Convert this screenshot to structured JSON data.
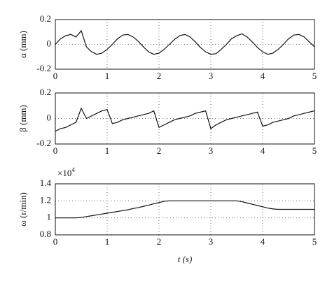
{
  "chart_data": [
    {
      "type": "line",
      "ylabel": "α (mm)",
      "x": [
        0,
        0.1,
        0.2,
        0.3,
        0.4,
        0.5,
        0.6,
        0.7,
        0.8,
        0.9,
        1,
        1.1,
        1.2,
        1.3,
        1.4,
        1.5,
        1.6,
        1.7,
        1.8,
        1.9,
        2,
        2.1,
        2.2,
        2.3,
        2.4,
        2.5,
        2.6,
        2.7,
        2.8,
        2.9,
        3,
        3.1,
        3.2,
        3.3,
        3.4,
        3.5,
        3.6,
        3.7,
        3.8,
        3.9,
        4,
        4.1,
        4.2,
        4.3,
        4.4,
        4.5,
        4.6,
        4.7,
        4.8,
        4.9,
        5
      ],
      "series": [
        {
          "color": "#111111",
          "values": [
            0,
            0.045,
            0.07,
            0.08,
            0.06,
            0.11,
            -0.02,
            -0.06,
            -0.08,
            -0.07,
            -0.04,
            0.0,
            0.045,
            0.075,
            0.08,
            0.06,
            0.025,
            -0.02,
            -0.06,
            -0.08,
            -0.07,
            -0.04,
            0.0,
            0.04,
            0.07,
            0.08,
            0.06,
            0.02,
            -0.025,
            -0.06,
            -0.08,
            -0.075,
            -0.04,
            0.0,
            0.045,
            0.07,
            0.085,
            0.06,
            0.02,
            -0.025,
            -0.06,
            -0.08,
            -0.07,
            -0.04,
            0.0,
            0.045,
            0.075,
            0.08,
            0.06,
            0.02,
            -0.02
          ]
        }
      ],
      "xlim": [
        0,
        5
      ],
      "xticks": [
        0,
        1,
        2,
        3,
        4,
        5
      ],
      "ylim": [
        -0.2,
        0.2
      ],
      "yticks": [
        -0.2,
        0,
        0.2
      ],
      "grid": true
    },
    {
      "type": "line",
      "ylabel": "β (mm)",
      "x": [
        0,
        0.1,
        0.2,
        0.3,
        0.4,
        0.5,
        0.6,
        0.7,
        0.8,
        0.9,
        1,
        1.1,
        1.2,
        1.3,
        1.4,
        1.5,
        1.6,
        1.7,
        1.8,
        1.9,
        2,
        2.1,
        2.2,
        2.3,
        2.4,
        2.5,
        2.6,
        2.7,
        2.8,
        2.9,
        3,
        3.1,
        3.2,
        3.3,
        3.4,
        3.5,
        3.6,
        3.7,
        3.8,
        3.9,
        4,
        4.1,
        4.2,
        4.3,
        4.4,
        4.5,
        4.6,
        4.7,
        4.8,
        4.9,
        5
      ],
      "series": [
        {
          "color": "#111111",
          "values": [
            -0.1,
            -0.08,
            -0.07,
            -0.05,
            -0.03,
            0.08,
            0.0,
            0.02,
            0.04,
            0.06,
            0.07,
            -0.04,
            -0.03,
            -0.01,
            0.0,
            0.01,
            0.02,
            0.03,
            0.04,
            0.06,
            -0.07,
            -0.05,
            -0.03,
            -0.01,
            0.0,
            0.01,
            0.02,
            0.04,
            0.05,
            0.06,
            -0.08,
            -0.05,
            -0.03,
            -0.01,
            0.0,
            0.01,
            0.02,
            0.03,
            0.04,
            0.05,
            -0.06,
            -0.05,
            -0.03,
            -0.02,
            -0.01,
            0.0,
            0.02,
            0.03,
            0.04,
            0.05,
            0.06
          ]
        }
      ],
      "xlim": [
        0,
        5
      ],
      "xticks": [
        0,
        1,
        2,
        3,
        4,
        5
      ],
      "ylim": [
        -0.2,
        0.2
      ],
      "yticks": [
        -0.2,
        0,
        0.2
      ],
      "grid": true
    },
    {
      "type": "line",
      "ylabel": "ω (r/min)",
      "xlabel": "t (s)",
      "y_multiplier": {
        "base": "×10",
        "exponent": "4"
      },
      "x": [
        0,
        0.1,
        0.2,
        0.3,
        0.4,
        0.5,
        0.6,
        0.7,
        0.8,
        0.9,
        1,
        1.1,
        1.2,
        1.3,
        1.4,
        1.5,
        1.6,
        1.7,
        1.8,
        1.9,
        2,
        2.1,
        2.2,
        2.3,
        2.4,
        2.5,
        2.6,
        2.7,
        2.8,
        2.9,
        3,
        3.1,
        3.2,
        3.3,
        3.4,
        3.5,
        3.6,
        3.7,
        3.8,
        3.9,
        4,
        4.1,
        4.2,
        4.3,
        4.4,
        4.5,
        4.6,
        4.7,
        4.8,
        4.9,
        5
      ],
      "series": [
        {
          "color": "#111111",
          "values": [
            1.0,
            1.0,
            1.0,
            1.0,
            1.0,
            1.005,
            1.015,
            1.025,
            1.035,
            1.045,
            1.055,
            1.065,
            1.075,
            1.085,
            1.095,
            1.11,
            1.12,
            1.135,
            1.15,
            1.165,
            1.18,
            1.195,
            1.2,
            1.2,
            1.2,
            1.2,
            1.2,
            1.2,
            1.2,
            1.2,
            1.2,
            1.2,
            1.2,
            1.2,
            1.2,
            1.2,
            1.19,
            1.175,
            1.16,
            1.145,
            1.13,
            1.115,
            1.105,
            1.1,
            1.1,
            1.1,
            1.1,
            1.1,
            1.1,
            1.1,
            1.1
          ]
        }
      ],
      "xlim": [
        0,
        5
      ],
      "xticks": [
        0,
        1,
        2,
        3,
        4,
        5
      ],
      "ylim": [
        0.8,
        1.4
      ],
      "yticks": [
        0.8,
        1,
        1.2,
        1.4
      ],
      "grid": true
    }
  ]
}
